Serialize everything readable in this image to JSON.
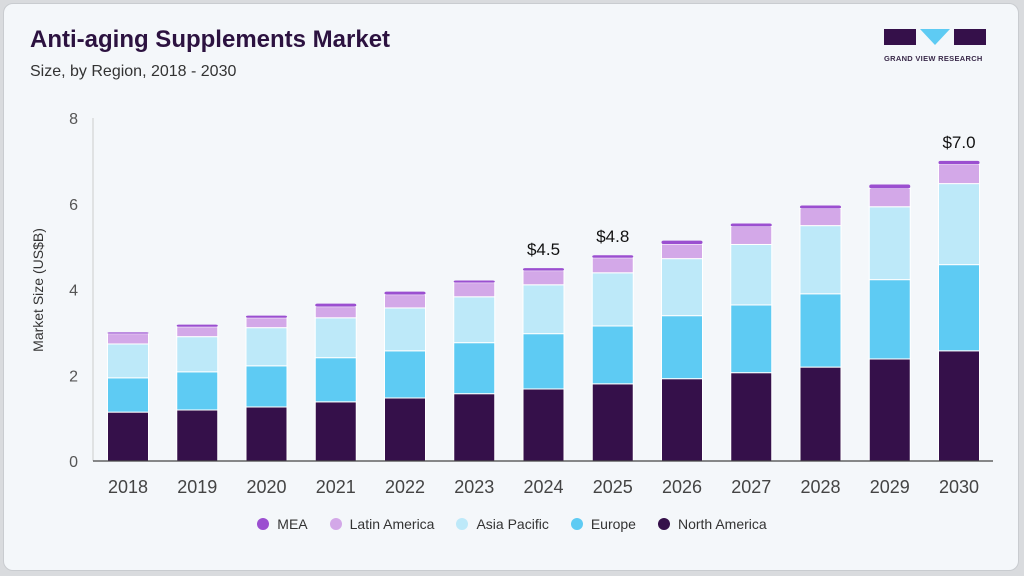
{
  "header": {
    "title": "Anti-aging Supplements Market",
    "subtitle": "Size, by Region, 2018 - 2030",
    "logo_text": "GRAND VIEW RESEARCH"
  },
  "chart_data": {
    "type": "bar",
    "stacked": true,
    "title": "Anti-aging Supplements Market",
    "subtitle": "Size, by Region, 2018 - 2030",
    "xlabel": "",
    "ylabel": "Market Size (US$B)",
    "ylim": [
      0,
      8
    ],
    "yticks": [
      "0",
      "2",
      "4",
      "6",
      "8"
    ],
    "grid": false,
    "legend_position": "bottom",
    "categories": [
      "2018",
      "2019",
      "2020",
      "2021",
      "2022",
      "2023",
      "2024",
      "2025",
      "2026",
      "2027",
      "2028",
      "2029",
      "2030"
    ],
    "series": [
      {
        "name": "North America",
        "color": "#35104a",
        "values": [
          1.14,
          1.19,
          1.26,
          1.38,
          1.47,
          1.57,
          1.68,
          1.8,
          1.92,
          2.06,
          2.19,
          2.38,
          2.57
        ]
      },
      {
        "name": "Europe",
        "color": "#5ecbf3",
        "values": [
          0.8,
          0.89,
          0.96,
          1.03,
          1.1,
          1.19,
          1.29,
          1.35,
          1.47,
          1.58,
          1.71,
          1.85,
          2.01
        ]
      },
      {
        "name": "Asia Pacific",
        "color": "#bde9f9",
        "values": [
          0.79,
          0.82,
          0.89,
          0.93,
          1.0,
          1.07,
          1.14,
          1.24,
          1.33,
          1.41,
          1.59,
          1.7,
          1.89
        ]
      },
      {
        "name": "Latin America",
        "color": "#d3a8e8",
        "values": [
          0.24,
          0.23,
          0.23,
          0.26,
          0.31,
          0.33,
          0.33,
          0.35,
          0.34,
          0.42,
          0.4,
          0.43,
          0.45
        ]
      },
      {
        "name": "MEA",
        "color": "#9b4fd0",
        "values": [
          0.03,
          0.05,
          0.05,
          0.07,
          0.07,
          0.05,
          0.06,
          0.06,
          0.08,
          0.07,
          0.07,
          0.09,
          0.08
        ]
      }
    ],
    "data_labels": {
      "2024": "$4.5",
      "2025": "$4.8",
      "2030": "$7.0"
    }
  },
  "legend": [
    "MEA",
    "Latin America",
    "Asia Pacific",
    "Europe",
    "North America"
  ]
}
